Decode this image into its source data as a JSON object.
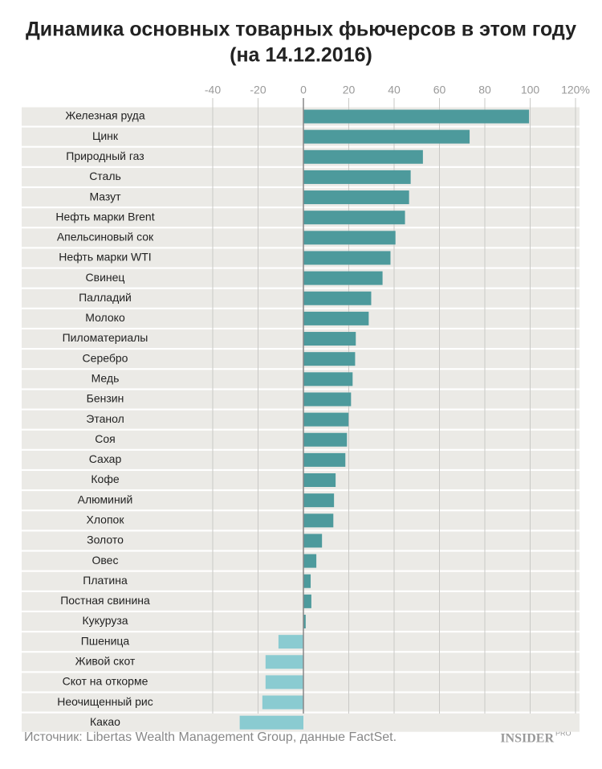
{
  "chart_data": {
    "type": "bar",
    "orientation": "horizontal",
    "title": "Динамика основных товарных фьючерсов в этом году",
    "subtitle": "(на 14.12.2016)",
    "categories": [
      "Железная руда",
      "Цинк",
      "Природный газ",
      "Сталь",
      "Мазут",
      "Нефть марки Brent",
      "Апельсиновый сок",
      "Нефть марки WTI",
      "Свинец",
      "Палладий",
      "Молоко",
      "Пиломатериалы",
      "Серебро",
      "Медь",
      "Бензин",
      "Этанол",
      "Соя",
      "Сахар",
      "Кофе",
      "Алюминий",
      "Хлопок",
      "Золото",
      "Овес",
      "Платина",
      "Постная свинина",
      "Кукуруза",
      "Пшеница",
      "Живой скот",
      "Скот на откорме",
      "Неочищенный рис",
      "Какао"
    ],
    "values": [
      99.5,
      73.3,
      52.7,
      47.3,
      46.6,
      44.8,
      40.6,
      38.4,
      34.9,
      29.9,
      28.8,
      23.1,
      22.8,
      21.7,
      21,
      19.9,
      19.2,
      18.5,
      14.2,
      13.5,
      13.2,
      8.2,
      5.7,
      3.2,
      3.5,
      1,
      -11,
      -16.7,
      -16.7,
      -18.1,
      -28.1
    ],
    "color": "#4d9a9c",
    "negative_color": "#8acbd1",
    "xlim": [
      -40,
      120
    ],
    "xticks": [
      -40,
      -20,
      0,
      20,
      40,
      60,
      80,
      100,
      {
        "value": 120,
        "label": "120%"
      }
    ],
    "grid": true,
    "source": "Источник: Libertas Wealth Management Group, данные FactSet.",
    "logo": "INSIDER",
    "logo_suffix": "PRO"
  }
}
